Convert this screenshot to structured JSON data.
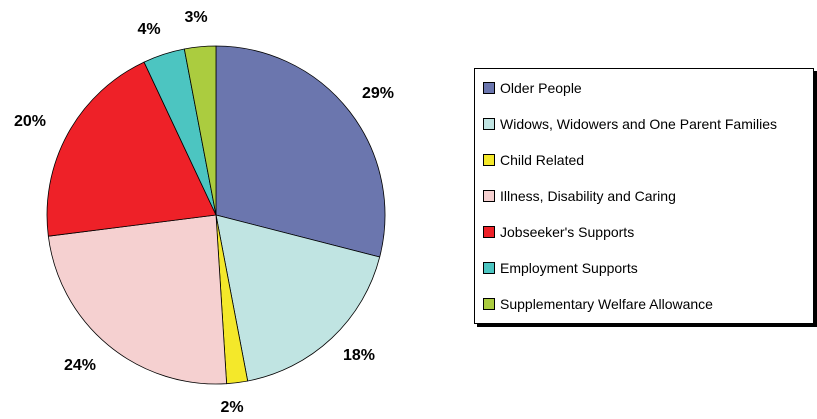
{
  "chart_data": {
    "type": "pie",
    "categories": [
      "Older People",
      "Widows, Widowers and One Parent Families",
      "Child Related",
      "Illness, Disability and Caring",
      "Jobseeker's Supports",
      "Employment Supports",
      "Supplementary Welfare Allowance"
    ],
    "values": [
      29,
      18,
      2,
      24,
      20,
      4,
      3
    ],
    "labels": [
      "29%",
      "18%",
      "2%",
      "24%",
      "20%",
      "4%",
      "3%"
    ],
    "colors": [
      "#6b76ae",
      "#c0e4e2",
      "#f4e82a",
      "#f5d0d0",
      "#ee2128",
      "#4cc5c1",
      "#abcc3f"
    ],
    "legend_position": "right",
    "start": "12 o'clock",
    "direction": "clockwise"
  },
  "legend": {
    "items": [
      "Older People",
      "Widows, Widowers and One Parent Families",
      "Child Related",
      "Illness, Disability and Caring",
      "Jobseeker's Supports",
      "Employment Supports",
      "Supplementary Welfare Allowance"
    ]
  }
}
